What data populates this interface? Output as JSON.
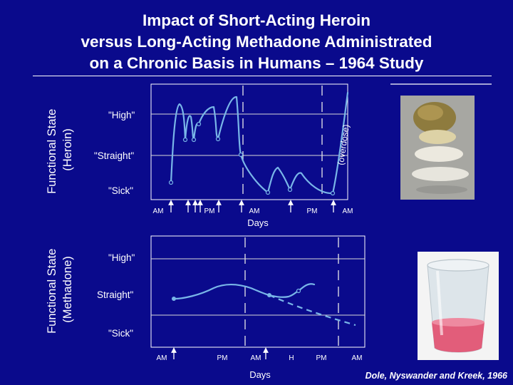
{
  "title": {
    "line1": "Impact of Short-Acting Heroin",
    "line2": "versus Long-Acting Methadone Administrated",
    "line3": "on a Chronic Basis in Humans – 1964 Study"
  },
  "credit": "Dole, Nyswander and Kreek, 1966",
  "colors": {
    "background": "#0a0a8c",
    "curve": "#79b6e8",
    "text": "#ffffff"
  },
  "images": {
    "heroin": "photo of powdered heroin samples in tan and white piles",
    "methadone": "photo of a translucent plastic cup with pink liquid"
  },
  "chart_data": [
    {
      "type": "line",
      "ylabel": "Functional State (Heroin)",
      "xlabel": "Days",
      "states": [
        "\"High\"",
        "\"Straight\"",
        "\"Sick\""
      ],
      "annotation": "(overdose)",
      "tick_labels": [
        "AM",
        "PM",
        "AM",
        "PM",
        "AM"
      ],
      "day_boundaries": [
        2
      ],
      "injection_count": 8,
      "curve_description": "rapid oscillation between \"High\" and \"Sick\" after each heroin dose, ending in an overdose spike"
    },
    {
      "type": "line",
      "ylabel": "Functional State (Methadone)",
      "xlabel": "Days",
      "states": [
        "\"High\"",
        "\"Straight\"",
        "\"Sick\""
      ],
      "tick_labels": [
        "AM",
        "PM",
        "AM",
        "H",
        "PM",
        "AM"
      ],
      "day_boundaries": [
        2
      ],
      "dose_count": 2,
      "curve_description": "stable near \"Straight\" throughout; dashed segment shows gradual decline without further dosing"
    }
  ]
}
